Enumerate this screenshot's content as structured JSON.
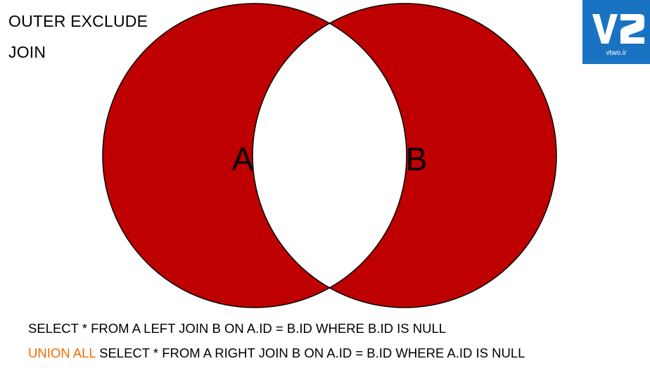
{
  "title": {
    "line1": "OUTER EXCLUDE",
    "line2": "JOIN"
  },
  "logo": {
    "mark": "V2",
    "domain": "vtwo.ir",
    "background_color": "#1a73c2",
    "icon": "v2-logo-icon"
  },
  "diagram": {
    "fill_color": "#bf0000",
    "overlap_color": "#ffffff",
    "sets": [
      {
        "label": "A"
      },
      {
        "label": "B"
      }
    ]
  },
  "sql": {
    "line1": "SELECT * FROM A LEFT JOIN B ON A.ID = B.ID WHERE B.ID IS NULL",
    "line2_keyword": "UNION ALL",
    "line2_rest": " SELECT * FROM A RIGHT JOIN B ON A.ID = B.ID WHERE A.ID IS NULL",
    "keyword_color": "#ef6c00"
  }
}
